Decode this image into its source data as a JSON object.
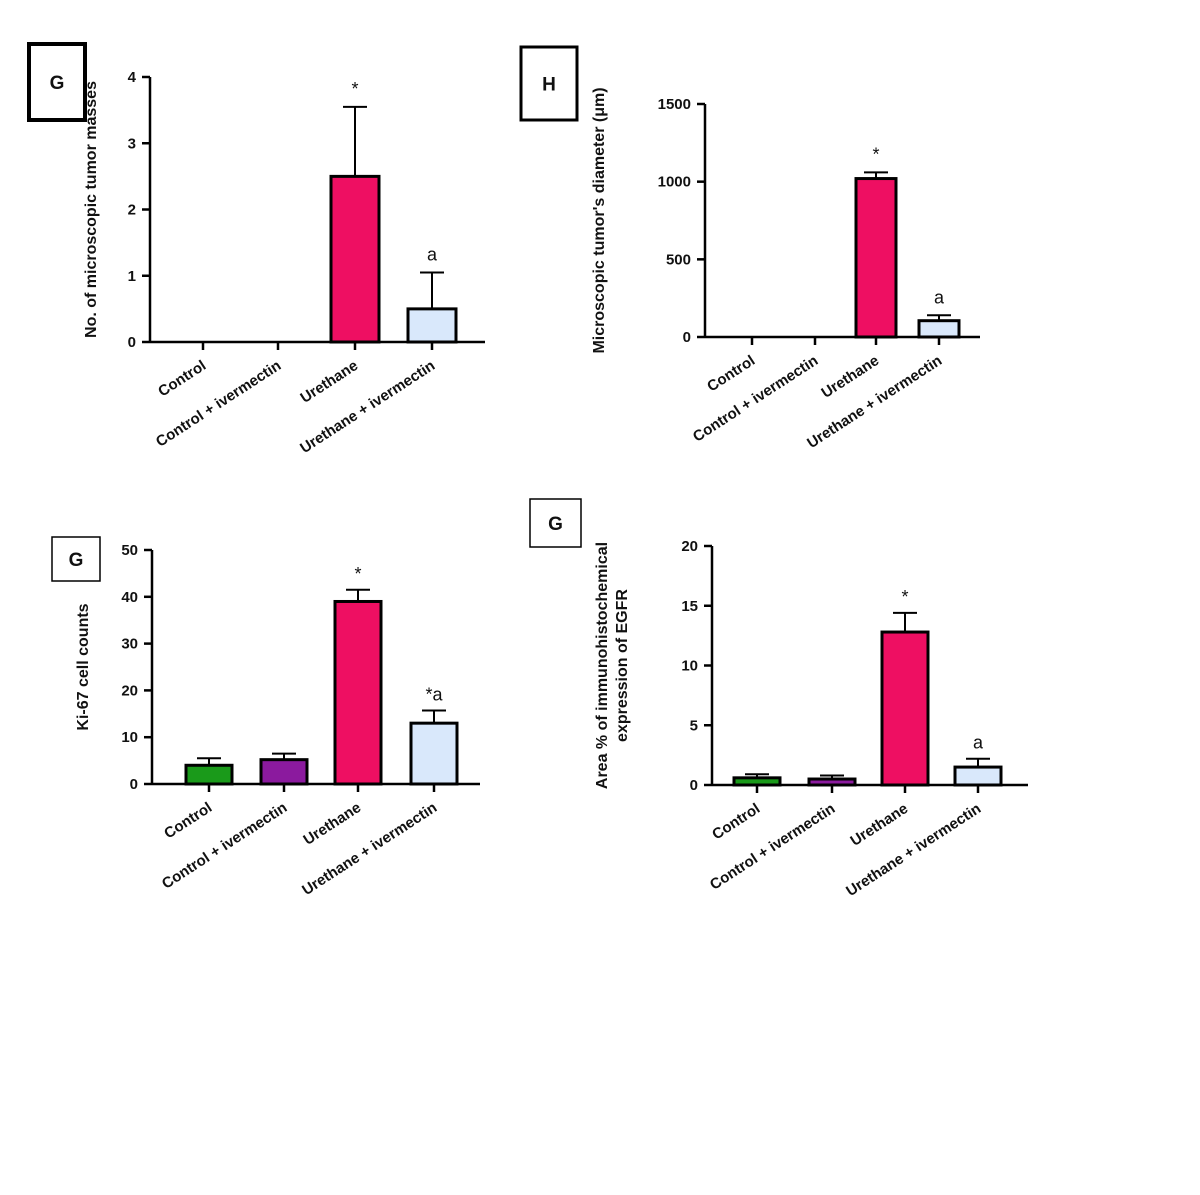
{
  "chart_data": [
    {
      "type": "bar",
      "panel_label": "G",
      "title": "",
      "ylabel": "No. of microscopic tumor masses",
      "xlabel": "",
      "categories": [
        "Control",
        "Control + ivermectin",
        "Urethane",
        "Urethane + ivermectin"
      ],
      "values": [
        0,
        0,
        2.5,
        0.5
      ],
      "errors": [
        0,
        0,
        1.05,
        0.55
      ],
      "significance": [
        "",
        "",
        "*",
        "a"
      ],
      "bar_colors": [
        "#1a9a1a",
        "#8b1a9e",
        "#ee0f62",
        "#d9e8fb"
      ],
      "ylim": [
        0,
        4
      ],
      "yticks": [
        0,
        1,
        2,
        3,
        4
      ],
      "grid": false
    },
    {
      "type": "bar",
      "panel_label": "H",
      "title": "",
      "ylabel": "Microscopic tumor's diameter (μm)",
      "xlabel": "",
      "categories": [
        "Control",
        "Control + ivermectin",
        "Urethane",
        "Urethane + ivermectin"
      ],
      "values": [
        0,
        0,
        1020,
        105
      ],
      "errors": [
        0,
        0,
        40,
        35
      ],
      "significance": [
        "",
        "",
        "*",
        "a"
      ],
      "bar_colors": [
        "#1a9a1a",
        "#8b1a9e",
        "#ee0f62",
        "#d9e8fb"
      ],
      "ylim": [
        0,
        1500
      ],
      "yticks": [
        0,
        500,
        1000,
        1500
      ],
      "grid": false
    },
    {
      "type": "bar",
      "panel_label": "G",
      "title": "",
      "ylabel": "Ki-67 cell counts",
      "xlabel": "",
      "categories": [
        "Control",
        "Control + ivermectin",
        "Urethane",
        "Urethane + ivermectin"
      ],
      "values": [
        4,
        5.2,
        39,
        13
      ],
      "errors": [
        1.5,
        1.3,
        2.5,
        2.7
      ],
      "significance": [
        "",
        "",
        "*",
        "*a"
      ],
      "bar_colors": [
        "#1a9a1a",
        "#8b1a9e",
        "#ee0f62",
        "#d9e8fb"
      ],
      "ylim": [
        0,
        50
      ],
      "yticks": [
        0,
        10,
        20,
        30,
        40,
        50
      ],
      "grid": false
    },
    {
      "type": "bar",
      "panel_label": "G",
      "title": "",
      "ylabel": "Area % of immunohistochemical expression of EGFR",
      "ylabel_lines": [
        "Area % of immunohistochemical",
        "expression of EGFR"
      ],
      "xlabel": "",
      "categories": [
        "Control",
        "Control + ivermectin",
        "Urethane",
        "Urethane + ivermectin"
      ],
      "values": [
        0.6,
        0.5,
        12.8,
        1.5
      ],
      "errors": [
        0.3,
        0.3,
        1.6,
        0.7
      ],
      "significance": [
        "",
        "",
        "*",
        "a"
      ],
      "bar_colors": [
        "#1a9a1a",
        "#8b1a9e",
        "#ee0f62",
        "#d9e8fb"
      ],
      "ylim": [
        0,
        20
      ],
      "yticks": [
        0,
        5,
        10,
        15,
        20
      ],
      "grid": false
    }
  ]
}
